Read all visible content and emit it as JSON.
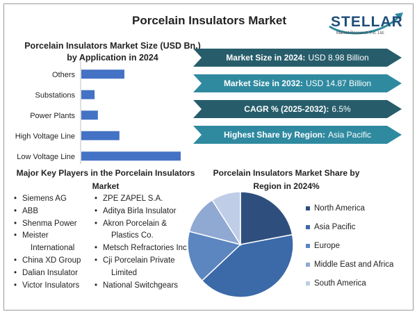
{
  "title": "Porcelain Insulators Market",
  "logo": {
    "name": "STELLAR",
    "subtitle": "Market Research Pvt. Ltd."
  },
  "kpis": [
    {
      "label": "Market Size in 2024:",
      "value": "USD 8.98 Billion",
      "style": "dark"
    },
    {
      "label": "Market Size in 2032:",
      "value": "USD 14.87 Billion",
      "style": "light"
    },
    {
      "label": "CAGR % (2025-2032):",
      "value": "6.5%",
      "style": "dark"
    },
    {
      "label": "Highest Share by Region:",
      "value": "Asia Pacific",
      "style": "light"
    }
  ],
  "players": {
    "title": "Major Key Players in the Porcelain Insulators Market",
    "col1": [
      "Siemens AG",
      "ABB",
      "Shenma Power",
      "Meister",
      "International",
      "China XD Group",
      "Dalian Insulator",
      "Victor Insulators"
    ],
    "col2": [
      "ZPE ZAPEL S.A.",
      "Aditya Birla Insulator",
      "Akron Porcelain &",
      "Plastics Co.",
      "Metsch Refractories Inc.",
      "Cji Porcelain Private",
      "Limited",
      "National Switchgears"
    ]
  },
  "chart_data": [
    {
      "type": "bar",
      "orientation": "horizontal",
      "title": "Porcelain Insulators Market Size (USD Bn.) by Application in 2024",
      "categories": [
        "Others",
        "Substations",
        "Power Plants",
        "High Voltage Line",
        "Low Voltage Line"
      ],
      "values": [
        1.3,
        0.4,
        0.5,
        1.15,
        3.0
      ],
      "xlim": [
        0,
        3.0
      ],
      "grid": false,
      "color": "#4472c4"
    },
    {
      "type": "pie",
      "title": "Porcelain Insulators Market Share by Region in 2024%",
      "labels": [
        "North America",
        "Asia Pacific",
        "Europe",
        "Middle East and Africa",
        "South America"
      ],
      "values": [
        22,
        41,
        16,
        12,
        9
      ],
      "colors": [
        "#2e4f7e",
        "#3c6aa8",
        "#5b86bf",
        "#90a9d2",
        "#bfcde6"
      ],
      "legend": "right"
    }
  ]
}
